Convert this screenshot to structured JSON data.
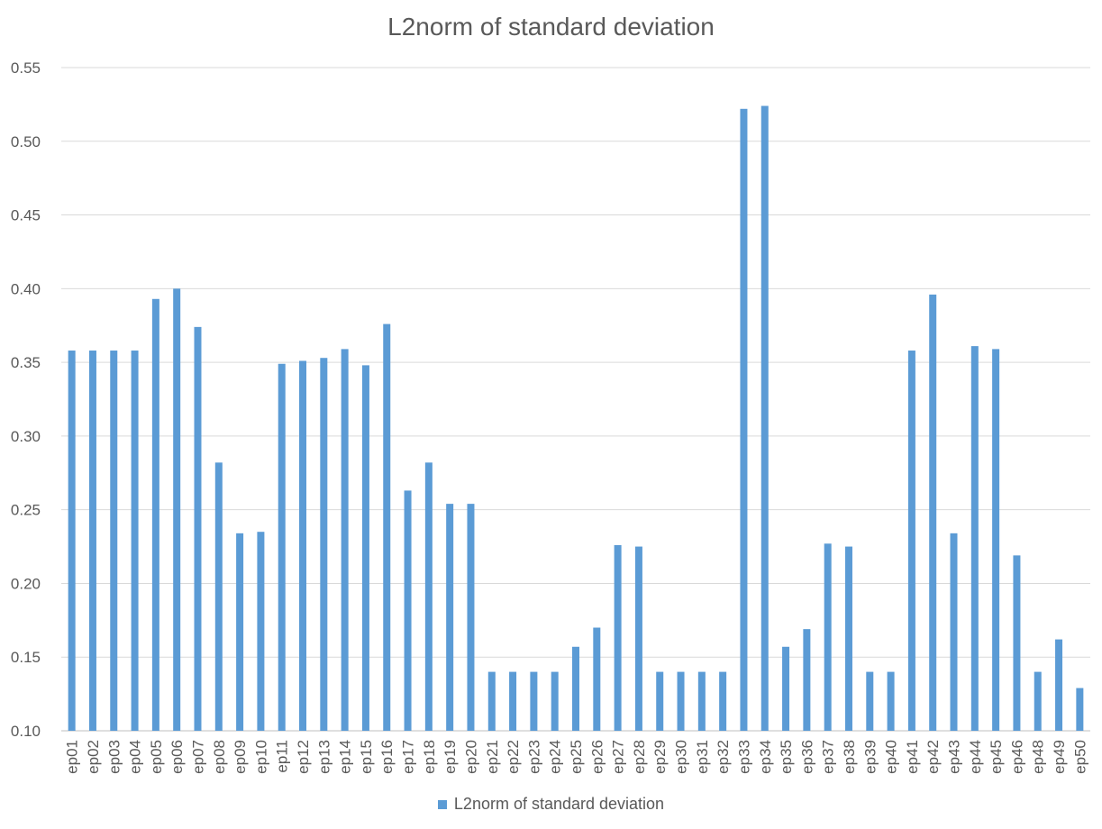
{
  "chart_data": {
    "type": "bar",
    "title": "L2norm of standard deviation",
    "xlabel": "",
    "ylabel": "",
    "ylim": [
      0.1,
      0.55
    ],
    "yticks": [
      "0.10",
      "0.15",
      "0.20",
      "0.25",
      "0.30",
      "0.35",
      "0.40",
      "0.45",
      "0.50",
      "0.55"
    ],
    "grid": true,
    "legend_position": "bottom",
    "bar_color": "#5b9bd5",
    "categories": [
      "ep01",
      "ep02",
      "ep03",
      "ep04",
      "ep05",
      "ep06",
      "ep07",
      "ep08",
      "ep09",
      "ep10",
      "ep11",
      "ep12",
      "ep13",
      "ep14",
      "ep15",
      "ep16",
      "ep17",
      "ep18",
      "ep19",
      "ep20",
      "ep21",
      "ep22",
      "ep23",
      "ep24",
      "ep25",
      "ep26",
      "ep27",
      "ep28",
      "ep29",
      "ep30",
      "ep31",
      "ep32",
      "ep33",
      "ep34",
      "ep35",
      "ep36",
      "ep37",
      "ep38",
      "ep39",
      "ep40",
      "ep41",
      "ep42",
      "ep43",
      "ep44",
      "ep45",
      "ep46",
      "ep48",
      "ep49",
      "ep50"
    ],
    "series": [
      {
        "name": "L2norm of standard deviation",
        "values": [
          0.358,
          0.358,
          0.358,
          0.358,
          0.393,
          0.4,
          0.374,
          0.282,
          0.234,
          0.235,
          0.349,
          0.351,
          0.353,
          0.359,
          0.348,
          0.376,
          0.263,
          0.282,
          0.254,
          0.254,
          0.14,
          0.14,
          0.14,
          0.14,
          0.157,
          0.17,
          0.226,
          0.225,
          0.14,
          0.14,
          0.14,
          0.14,
          0.522,
          0.524,
          0.157,
          0.169,
          0.227,
          0.225,
          0.14,
          0.14,
          0.358,
          0.396,
          0.234,
          0.361,
          0.359,
          0.219,
          0.14,
          0.162,
          0.129
        ]
      }
    ]
  }
}
